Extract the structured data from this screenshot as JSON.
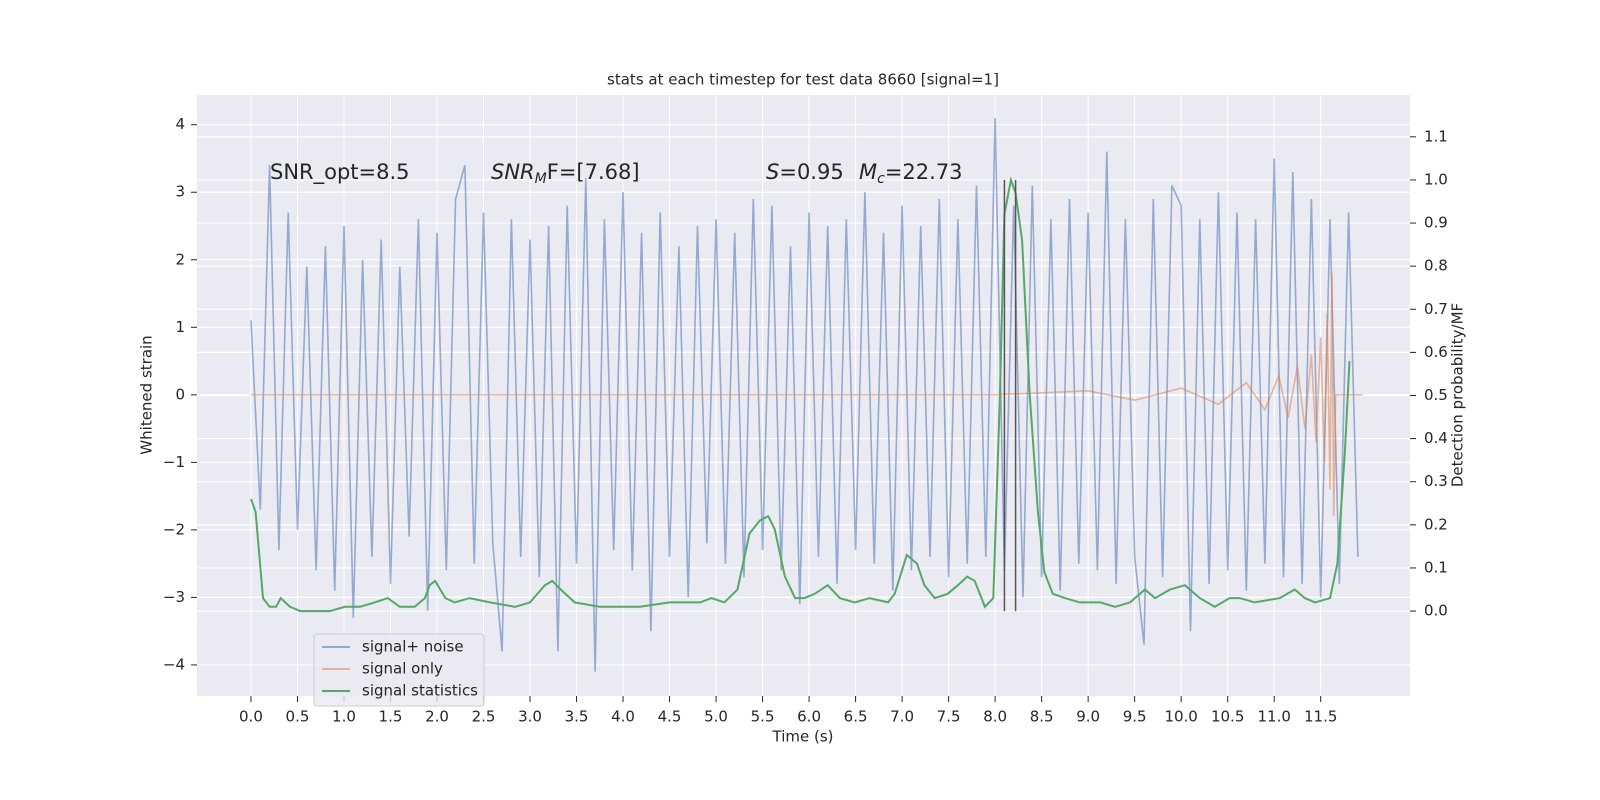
{
  "chart_data": {
    "type": "line",
    "title": "stats at each timestep for test data 8660 [signal=1]",
    "xlabel": "Time (s)",
    "ylabel": "Whitened strain",
    "y2label": "Detection probability/MF",
    "xlim": [
      -0.58,
      12.46
    ],
    "ylim": [
      -4.46,
      4.44
    ],
    "y2lim": [
      -0.197,
      1.197
    ],
    "xticks": [
      {
        "value": 0,
        "label": "0.0"
      },
      0.5,
      {
        "value": 1,
        "label": "1.0"
      },
      1.5,
      {
        "value": 2,
        "label": "2.0"
      },
      2.5,
      {
        "value": 3,
        "label": "3.0"
      },
      3.5,
      {
        "value": 4,
        "label": "4.0"
      },
      4.5,
      {
        "value": 5,
        "label": "5.0"
      },
      5.5,
      {
        "value": 6,
        "label": "6.0"
      },
      6.5,
      {
        "value": 7,
        "label": "7.0"
      },
      7.5,
      {
        "value": 8,
        "label": "8.0"
      },
      8.5,
      {
        "value": 9,
        "label": "9.0"
      },
      9.5,
      {
        "value": 10,
        "label": "10.0"
      },
      10.5,
      {
        "value": 11,
        "label": "11.0"
      },
      11.5
    ],
    "yticks": [
      {
        "value": -4,
        "label": "−4"
      },
      {
        "value": -3,
        "label": "−3"
      },
      {
        "value": -2,
        "label": "−2"
      },
      {
        "value": -1,
        "label": "−1"
      },
      0,
      1,
      2,
      3,
      4
    ],
    "y2ticks": [
      {
        "value": 0,
        "label": "0.0"
      },
      0.1,
      0.2,
      0.3,
      0.4,
      0.5,
      0.6,
      0.7,
      0.8,
      0.9,
      {
        "value": 1,
        "label": "1.0"
      },
      1.1
    ],
    "grid": true,
    "legend": "lower left",
    "annotations": [
      [
        {
          "text": "SNR_opt=8.5"
        }
      ],
      [
        {
          "text": "SNR",
          "style": "italic"
        },
        {
          "text": "M",
          "style": "sub"
        },
        {
          "text": "F=[7.68]"
        }
      ],
      [
        {
          "text": "S",
          "style": "italic"
        },
        {
          "text": "=0.95"
        }
      ],
      [
        {
          "text": "M",
          "style": "italic"
        },
        {
          "text": "c",
          "style": "sub"
        },
        {
          "text": "=22.73"
        }
      ]
    ],
    "vlines": {
      "x": [
        8.1,
        8.22
      ],
      "y2": [
        0,
        1
      ],
      "color": "#555555"
    },
    "series": [
      {
        "name": "signal+ noise",
        "color": "#4c72b0",
        "x": [
          0.0,
          0.1,
          0.2,
          0.3,
          0.4,
          0.5,
          0.6,
          0.7,
          0.8,
          0.9,
          1.0,
          1.1,
          1.2,
          1.3,
          1.4,
          1.5,
          1.6,
          1.7,
          1.8,
          1.9,
          2.0,
          2.1,
          2.2,
          2.3,
          2.4,
          2.5,
          2.6,
          2.7,
          2.8,
          2.9,
          3.0,
          3.1,
          3.2,
          3.3,
          3.4,
          3.5,
          3.6,
          3.7,
          3.8,
          3.9,
          4.0,
          4.1,
          4.2,
          4.3,
          4.4,
          4.5,
          4.6,
          4.7,
          4.8,
          4.9,
          5.0,
          5.1,
          5.2,
          5.3,
          5.4,
          5.5,
          5.6,
          5.7,
          5.8,
          5.9,
          6.0,
          6.1,
          6.2,
          6.3,
          6.4,
          6.5,
          6.6,
          6.7,
          6.8,
          6.9,
          7.0,
          7.1,
          7.2,
          7.3,
          7.4,
          7.5,
          7.6,
          7.7,
          7.8,
          7.9,
          8.0,
          8.1,
          8.2,
          8.3,
          8.4,
          8.5,
          8.6,
          8.7,
          8.8,
          8.9,
          9.0,
          9.1,
          9.2,
          9.3,
          9.4,
          9.5,
          9.6,
          9.7,
          9.8,
          9.9,
          10.0,
          10.1,
          10.2,
          10.3,
          10.4,
          10.5,
          10.6,
          10.7,
          10.8,
          10.9,
          11.0,
          11.1,
          11.2,
          11.3,
          11.4,
          11.5,
          11.6,
          11.7,
          11.8,
          11.9
        ],
        "values": [
          1.1,
          -1.7,
          3.4,
          -2.3,
          2.7,
          -2.0,
          1.9,
          -2.6,
          2.2,
          -2.9,
          2.5,
          -3.3,
          2.0,
          -2.4,
          2.3,
          -2.8,
          1.9,
          -2.1,
          2.6,
          -3.2,
          2.4,
          -2.6,
          2.9,
          3.4,
          -2.5,
          2.7,
          -2.2,
          -3.8,
          2.6,
          -2.4,
          2.3,
          -2.7,
          2.5,
          -3.8,
          2.8,
          -2.5,
          3.2,
          -4.1,
          2.6,
          -2.3,
          3.0,
          -2.6,
          2.4,
          -3.5,
          2.7,
          -2.4,
          2.2,
          -3.0,
          2.5,
          -2.2,
          2.6,
          -2.5,
          2.4,
          -2.7,
          2.9,
          -2.3,
          2.8,
          -2.6,
          2.2,
          -3.1,
          2.7,
          -2.4,
          2.5,
          -2.8,
          2.6,
          -2.3,
          3.0,
          -2.5,
          2.4,
          -2.9,
          2.8,
          -2.6,
          2.5,
          -2.4,
          2.9,
          -2.7,
          2.6,
          -2.5,
          3.1,
          -2.4,
          4.1,
          -2.6,
          2.8,
          -3.0,
          3.1,
          -2.7,
          2.6,
          -2.9,
          2.9,
          -2.5,
          2.7,
          -2.6,
          3.6,
          -2.8,
          2.6,
          -2.4,
          -3.7,
          2.9,
          -2.7,
          3.1,
          2.8,
          -3.5,
          2.6,
          -2.8,
          3.0,
          -2.6,
          2.7,
          -2.9,
          2.6,
          -2.5,
          3.5,
          -2.7,
          3.3,
          -2.8,
          2.9,
          -3.0,
          2.6,
          -2.8,
          2.7,
          -2.4
        ]
      },
      {
        "name": "signal only",
        "color": "#dd8452",
        "x": [
          0.0,
          8.0,
          9.0,
          9.5,
          10.0,
          10.4,
          10.7,
          10.9,
          11.05,
          11.15,
          11.25,
          11.33,
          11.4,
          11.45,
          11.5,
          11.54,
          11.57,
          11.6,
          11.62,
          11.64,
          11.66,
          11.7,
          11.95
        ],
        "values": [
          0,
          0,
          0.06,
          -0.08,
          0.1,
          -0.14,
          0.18,
          -0.22,
          0.28,
          -0.34,
          0.42,
          -0.5,
          0.6,
          -0.7,
          0.85,
          -1.0,
          1.2,
          -1.4,
          1.8,
          -1.8,
          0,
          0,
          0
        ]
      },
      {
        "name": "signal statistics",
        "color": "#55a868",
        "axis": "y2",
        "x": [
          0.0,
          0.05,
          0.13,
          0.2,
          0.27,
          0.32,
          0.42,
          0.53,
          0.63,
          0.85,
          1.01,
          1.17,
          1.33,
          1.47,
          1.6,
          1.76,
          1.87,
          1.92,
          1.98,
          2.09,
          2.19,
          2.35,
          2.57,
          2.84,
          3.0,
          3.16,
          3.24,
          3.33,
          3.48,
          3.75,
          4.18,
          4.5,
          4.83,
          4.95,
          5.09,
          5.23,
          5.36,
          5.47,
          5.56,
          5.63,
          5.74,
          5.85,
          5.95,
          6.06,
          6.2,
          6.33,
          6.49,
          6.65,
          6.85,
          6.92,
          7.05,
          7.16,
          7.24,
          7.35,
          7.49,
          7.6,
          7.7,
          7.78,
          7.89,
          7.98,
          8.05,
          8.1,
          8.17,
          8.22,
          8.29,
          8.37,
          8.46,
          8.53,
          8.62,
          8.75,
          8.91,
          9.13,
          9.29,
          9.45,
          9.61,
          9.72,
          9.88,
          10.04,
          10.2,
          10.36,
          10.52,
          10.63,
          10.79,
          11.06,
          11.22,
          11.33,
          11.44,
          11.6,
          11.68,
          11.76,
          11.81
        ],
        "values": [
          0.26,
          0.23,
          0.03,
          0.01,
          0.01,
          0.03,
          0.01,
          0.0,
          0.0,
          0.0,
          0.01,
          0.01,
          0.02,
          0.03,
          0.01,
          0.01,
          0.03,
          0.06,
          0.07,
          0.03,
          0.02,
          0.03,
          0.02,
          0.01,
          0.02,
          0.06,
          0.07,
          0.05,
          0.02,
          0.01,
          0.01,
          0.02,
          0.02,
          0.03,
          0.02,
          0.05,
          0.18,
          0.21,
          0.22,
          0.19,
          0.08,
          0.03,
          0.03,
          0.04,
          0.06,
          0.03,
          0.02,
          0.03,
          0.02,
          0.04,
          0.13,
          0.11,
          0.06,
          0.03,
          0.04,
          0.06,
          0.08,
          0.07,
          0.01,
          0.03,
          0.49,
          0.92,
          1.0,
          0.97,
          0.86,
          0.51,
          0.23,
          0.09,
          0.04,
          0.03,
          0.02,
          0.02,
          0.01,
          0.02,
          0.05,
          0.03,
          0.05,
          0.06,
          0.03,
          0.01,
          0.03,
          0.03,
          0.02,
          0.03,
          0.05,
          0.03,
          0.02,
          0.03,
          0.11,
          0.37,
          0.58
        ]
      }
    ]
  }
}
